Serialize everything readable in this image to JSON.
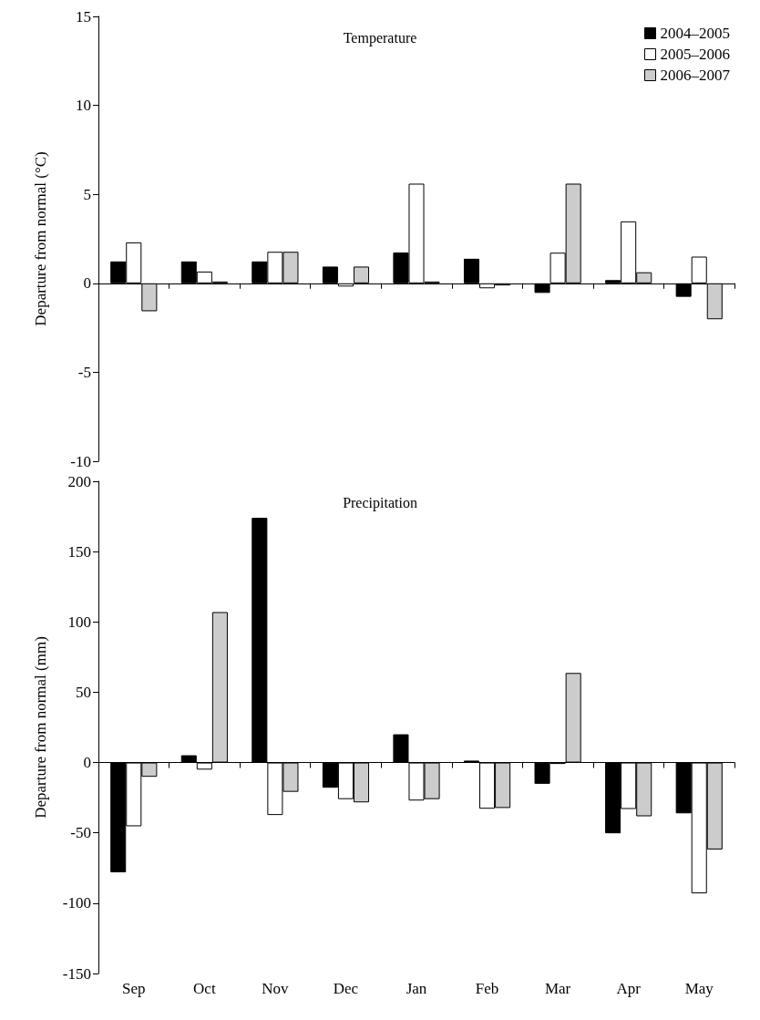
{
  "chart_data": [
    {
      "type": "bar",
      "title": "Temperature",
      "ylabel": "Departure from normal (°C)",
      "categories": [
        null,
        null,
        null,
        null,
        null,
        null,
        null,
        null,
        null
      ],
      "series": [
        {
          "name": "2004–2005",
          "color": "#000000",
          "values": [
            1.23,
            1.23,
            1.23,
            0.94,
            1.73,
            1.38,
            -0.54,
            0.18,
            -0.76
          ]
        },
        {
          "name": "2005–2006",
          "color": "#ffffff",
          "values": [
            2.3,
            0.66,
            1.77,
            -0.18,
            5.6,
            -0.28,
            1.72,
            3.48,
            1.5
          ]
        },
        {
          "name": "2006–2007",
          "color": "#cccccc",
          "values": [
            -1.57,
            0.1,
            1.77,
            0.94,
            0.1,
            -0.12,
            5.6,
            0.62,
            -2.02
          ]
        }
      ],
      "ylim": [
        -10,
        15
      ],
      "yticks": [
        -10,
        -5,
        0,
        5,
        10,
        15
      ],
      "legend": "top right",
      "tick_labels": "y"
    },
    {
      "type": "bar",
      "title": "Precipitation",
      "ylabel": "Departure from normal (mm)",
      "categories": [
        "Sep",
        "Oct",
        "Nov",
        "Dec",
        "Jan",
        "Feb",
        "Mar",
        "Apr",
        "May"
      ],
      "series": [
        {
          "color": "#000000",
          "values": [
            -78,
            5.2,
            174,
            -17.9,
            20.1,
            1.4,
            -15.1,
            -50.3,
            -36.1
          ]
        },
        {
          "color": "#ffffff",
          "values": [
            -45.3,
            -5,
            -37.3,
            -26,
            -27,
            -32.8,
            -1,
            -33,
            -93
          ]
        },
        {
          "color": "#cccccc",
          "values": [
            -10.1,
            107,
            -20.8,
            -28.3,
            -26,
            -32.3,
            63.7,
            -38.2,
            -61.8
          ]
        }
      ],
      "ylim": [
        -150,
        200
      ],
      "yticks": [
        -150,
        -100,
        -50,
        0,
        50,
        100,
        150,
        200
      ]
    }
  ]
}
